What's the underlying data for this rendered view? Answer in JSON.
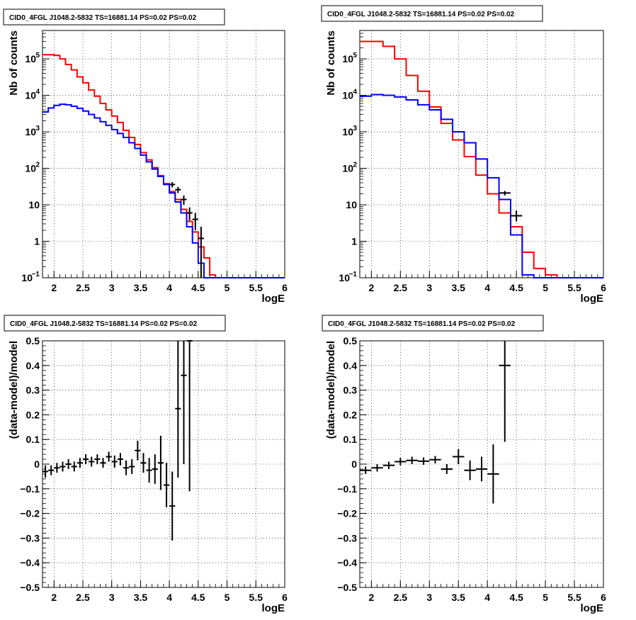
{
  "chart_data": [
    {
      "type": "line",
      "panel": "top-left",
      "title": "CID0_4FGL J1048.2-5832 TS=16881.14 PS=0.02 PS=0.02",
      "xlabel": "logE",
      "ylabel": "Nb of counts",
      "xlim": [
        1.8,
        6.0
      ],
      "ylim": [
        0.1,
        600000
      ],
      "yscale": "log",
      "grid": true,
      "xticks": [
        "2",
        "2.5",
        "3",
        "3.5",
        "4",
        "4.5",
        "5",
        "5.5",
        "6"
      ],
      "yticks": [
        "10^-1",
        "1",
        "10",
        "10^2",
        "10^3",
        "10^4",
        "10^5"
      ],
      "bin_width": 0.1,
      "series": [
        {
          "color": "#ff0000",
          "x": [
            1.8,
            1.9,
            2.0,
            2.1,
            2.2,
            2.3,
            2.4,
            2.5,
            2.6,
            2.7,
            2.8,
            2.9,
            3.0,
            3.1,
            3.2,
            3.3,
            3.4,
            3.5,
            3.6,
            3.7,
            3.8,
            3.9,
            4.0,
            4.1,
            4.2,
            4.3,
            4.4,
            4.5,
            4.6,
            4.7,
            4.8,
            4.9,
            5.0,
            5.1,
            5.2,
            5.3,
            5.4,
            5.5,
            5.6,
            5.7,
            5.8,
            5.9
          ],
          "values": [
            130000,
            130000,
            125000,
            100000,
            70000,
            50000,
            32000,
            22000,
            14000,
            9500,
            6000,
            4000,
            2700,
            1800,
            1100,
            700,
            450,
            270,
            170,
            105,
            63,
            38,
            23,
            14,
            7.5,
            3.5,
            1.8,
            0.7,
            0.35,
            0.12,
            0.1,
            0.1,
            0.1,
            0.1,
            0.1,
            0.1,
            0.1,
            0.1,
            0.1,
            0.1,
            0.1,
            0.1
          ]
        },
        {
          "color": "#0000ff",
          "x": [
            1.8,
            1.9,
            2.0,
            2.1,
            2.2,
            2.3,
            2.4,
            2.5,
            2.6,
            2.7,
            2.8,
            2.9,
            3.0,
            3.1,
            3.2,
            3.3,
            3.4,
            3.5,
            3.6,
            3.7,
            3.8,
            3.9,
            4.0,
            4.1,
            4.2,
            4.3,
            4.4,
            4.5,
            4.6,
            4.7,
            4.8,
            4.9,
            5.0,
            5.1,
            5.2,
            5.3,
            5.4,
            5.5,
            5.6,
            5.7,
            5.8,
            5.9
          ],
          "values": [
            3500,
            4500,
            5300,
            5700,
            5500,
            5000,
            4400,
            3700,
            3000,
            2400,
            1900,
            1500,
            1150,
            900,
            700,
            500,
            350,
            230,
            150,
            95,
            60,
            36,
            21,
            12,
            6,
            2.5,
            0.9,
            0.25,
            0.1,
            0.1,
            0.1,
            0.1,
            0.1,
            0.1,
            0.1,
            0.1,
            0.1,
            0.1,
            0.1,
            0.1,
            0.1,
            0.1
          ]
        }
      ],
      "points": [
        {
          "x": 4.05,
          "y": 36,
          "ylo": 30,
          "yhi": 42
        },
        {
          "x": 4.15,
          "y": 26,
          "ylo": 21,
          "yhi": 31
        },
        {
          "x": 4.25,
          "y": 14,
          "ylo": 10,
          "yhi": 18
        },
        {
          "x": 4.35,
          "y": 6,
          "ylo": 3.7,
          "yhi": 8.5
        },
        {
          "x": 4.45,
          "y": 4,
          "ylo": 2,
          "yhi": 6
        },
        {
          "x": 4.55,
          "y": 1.2,
          "ylo": 0.1,
          "yhi": 2.5
        }
      ]
    },
    {
      "type": "line",
      "panel": "top-right",
      "title": "CID0_4FGL J1048.2-5832 TS=16881.14 PS=0.02 PS=0.02",
      "xlabel": "logE",
      "ylabel": "Nb of counts",
      "xlim": [
        1.8,
        6.0
      ],
      "ylim": [
        0.1,
        600000
      ],
      "yscale": "log",
      "grid": true,
      "xticks": [
        "2",
        "2.5",
        "3",
        "3.5",
        "4",
        "4.5",
        "5",
        "5.5",
        "6"
      ],
      "yticks": [
        "10^-1",
        "1",
        "10",
        "10^2",
        "10^3",
        "10^4",
        "10^5"
      ],
      "bin_width": 0.2,
      "series": [
        {
          "color": "#ff0000",
          "x": [
            1.8,
            2.0,
            2.2,
            2.4,
            2.6,
            2.8,
            3.0,
            3.2,
            3.4,
            3.6,
            3.8,
            4.0,
            4.2,
            4.4,
            4.6,
            4.8,
            5.0,
            5.2,
            5.4,
            5.6,
            5.8
          ],
          "values": [
            300000,
            300000,
            220000,
            100000,
            35000,
            13000,
            4800,
            1700,
            600,
            210,
            65,
            20,
            6,
            2.5,
            0.5,
            0.18,
            0.12,
            0.1,
            0.1,
            0.1,
            0.1
          ]
        },
        {
          "color": "#0000ff",
          "x": [
            1.8,
            2.0,
            2.2,
            2.4,
            2.6,
            2.8,
            3.0,
            3.2,
            3.4,
            3.6,
            3.8,
            4.0,
            4.2,
            4.4,
            4.6,
            4.8,
            5.0,
            5.2,
            5.4,
            5.6,
            5.8
          ],
          "values": [
            9500,
            10500,
            10000,
            9000,
            7500,
            5500,
            4000,
            2200,
            1000,
            500,
            180,
            55,
            14,
            1.5,
            0.12,
            0.1,
            0.1,
            0.1,
            0.1,
            0.1,
            0.1
          ]
        }
      ],
      "points": [
        {
          "x": 4.3,
          "y": 21,
          "ylo": 18,
          "yhi": 24
        },
        {
          "x": 4.5,
          "y": 5,
          "ylo": 3.5,
          "yhi": 7
        }
      ]
    },
    {
      "type": "scatter",
      "panel": "bottom-left",
      "title": "CID0_4FGL J1048.2-5832 TS=16881.14 PS=0.02 PS=0.02",
      "xlabel": "logE",
      "ylabel": "(data-model)/model",
      "xlim": [
        1.8,
        6.0
      ],
      "ylim": [
        -0.5,
        0.5
      ],
      "grid": true,
      "xticks": [
        "2",
        "2.5",
        "3",
        "3.5",
        "4",
        "4.5",
        "5",
        "5.5",
        "6"
      ],
      "yticks": [
        "-0.5",
        "-0.4",
        "-0.3",
        "-0.2",
        "-0.1",
        "0",
        "0.1",
        "0.2",
        "0.3",
        "0.4",
        "0.5"
      ],
      "bin_width": 0.1,
      "points": [
        {
          "x": 1.85,
          "y": -0.03,
          "err": 0.025
        },
        {
          "x": 1.95,
          "y": -0.025,
          "err": 0.02
        },
        {
          "x": 2.05,
          "y": -0.015,
          "err": 0.02
        },
        {
          "x": 2.15,
          "y": -0.01,
          "err": 0.02
        },
        {
          "x": 2.25,
          "y": 0.0,
          "err": 0.02
        },
        {
          "x": 2.35,
          "y": -0.01,
          "err": 0.02
        },
        {
          "x": 2.45,
          "y": 0.005,
          "err": 0.02
        },
        {
          "x": 2.55,
          "y": 0.02,
          "err": 0.02
        },
        {
          "x": 2.65,
          "y": 0.01,
          "err": 0.02
        },
        {
          "x": 2.75,
          "y": 0.02,
          "err": 0.02
        },
        {
          "x": 2.85,
          "y": 0.005,
          "err": 0.02
        },
        {
          "x": 2.95,
          "y": 0.03,
          "err": 0.02
        },
        {
          "x": 3.05,
          "y": 0.01,
          "err": 0.025
        },
        {
          "x": 3.15,
          "y": 0.02,
          "err": 0.025
        },
        {
          "x": 3.25,
          "y": -0.015,
          "err": 0.03
        },
        {
          "x": 3.35,
          "y": -0.01,
          "err": 0.03
        },
        {
          "x": 3.45,
          "y": 0.055,
          "err": 0.04
        },
        {
          "x": 3.55,
          "y": 0.005,
          "err": 0.04
        },
        {
          "x": 3.65,
          "y": -0.025,
          "err": 0.05
        },
        {
          "x": 3.75,
          "y": -0.02,
          "err": 0.06
        },
        {
          "x": 3.85,
          "y": 0.005,
          "err": 0.11
        },
        {
          "x": 3.95,
          "y": -0.085,
          "err": 0.09
        },
        {
          "x": 4.05,
          "y": -0.17,
          "err": 0.14
        },
        {
          "x": 4.15,
          "y": 0.225,
          "err": 0.28
        },
        {
          "x": 4.25,
          "y": 0.36,
          "err": 0.36
        },
        {
          "x": 4.35,
          "y": 0.5,
          "err": 0.61
        }
      ]
    },
    {
      "type": "scatter",
      "panel": "bottom-right",
      "title": "CID0_4FGL J1048.2-5832 TS=16881.14 PS=0.02 PS=0.02",
      "xlabel": "logE",
      "ylabel": "(data-model)/model",
      "xlim": [
        1.8,
        6.0
      ],
      "ylim": [
        -0.5,
        0.5
      ],
      "grid": true,
      "xticks": [
        "2",
        "2.5",
        "3",
        "3.5",
        "4",
        "4.5",
        "5",
        "5.5",
        "6"
      ],
      "yticks": [
        "-0.5",
        "-0.4",
        "-0.3",
        "-0.2",
        "-0.1",
        "0",
        "0.1",
        "0.2",
        "0.3",
        "0.4",
        "0.5"
      ],
      "bin_width": 0.2,
      "points": [
        {
          "x": 1.9,
          "y": -0.025,
          "err": 0.015
        },
        {
          "x": 2.1,
          "y": -0.015,
          "err": 0.015
        },
        {
          "x": 2.3,
          "y": -0.005,
          "err": 0.015
        },
        {
          "x": 2.5,
          "y": 0.01,
          "err": 0.015
        },
        {
          "x": 2.7,
          "y": 0.015,
          "err": 0.015
        },
        {
          "x": 2.9,
          "y": 0.012,
          "err": 0.015
        },
        {
          "x": 3.1,
          "y": 0.018,
          "err": 0.015
        },
        {
          "x": 3.3,
          "y": -0.02,
          "err": 0.02
        },
        {
          "x": 3.5,
          "y": 0.03,
          "err": 0.03
        },
        {
          "x": 3.7,
          "y": -0.025,
          "err": 0.04
        },
        {
          "x": 3.9,
          "y": -0.02,
          "err": 0.05
        },
        {
          "x": 4.1,
          "y": -0.04,
          "err": 0.12
        },
        {
          "x": 4.3,
          "y": 0.4,
          "err": 0.31
        }
      ]
    }
  ]
}
